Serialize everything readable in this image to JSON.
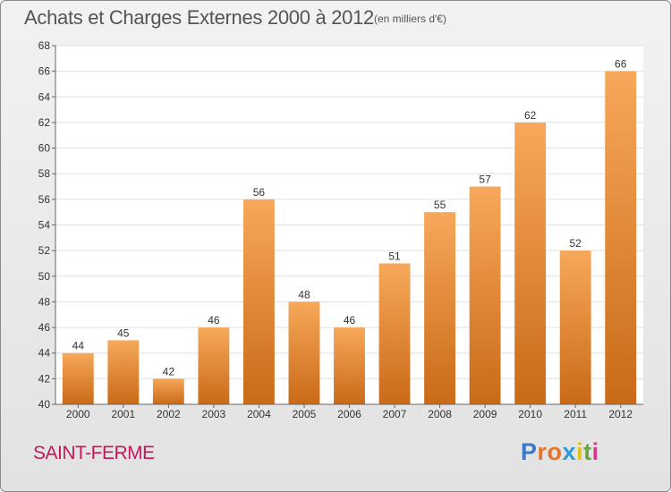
{
  "title": "Achats et Charges Externes 2000 à 2012",
  "subtitle": "(en milliers d'€)",
  "commune": "SAINT-FERME",
  "brand": {
    "text": "Proxiti",
    "letter_colors": [
      "#3a78c9",
      "#e8732a",
      "#e8732a",
      "#2c9ad8",
      "#e2c21c",
      "#6aa83b",
      "#d6398b"
    ]
  },
  "colors": {
    "bar_top": "#f7a85a",
    "bar_bottom": "#c96a17",
    "grid": "#e0e0e0",
    "axis": "#666666",
    "text": "#333333"
  },
  "chart_data": {
    "type": "bar",
    "categories": [
      "2000",
      "2001",
      "2002",
      "2003",
      "2004",
      "2005",
      "2006",
      "2007",
      "2008",
      "2009",
      "2010",
      "2011",
      "2012"
    ],
    "values": [
      44,
      45,
      42,
      46,
      56,
      48,
      46,
      51,
      55,
      57,
      62,
      52,
      66
    ],
    "ylim": [
      40,
      68
    ],
    "yticks": [
      40,
      42,
      44,
      46,
      48,
      50,
      52,
      54,
      56,
      58,
      60,
      62,
      64,
      66,
      68
    ],
    "grid": true,
    "data_labels": true
  }
}
